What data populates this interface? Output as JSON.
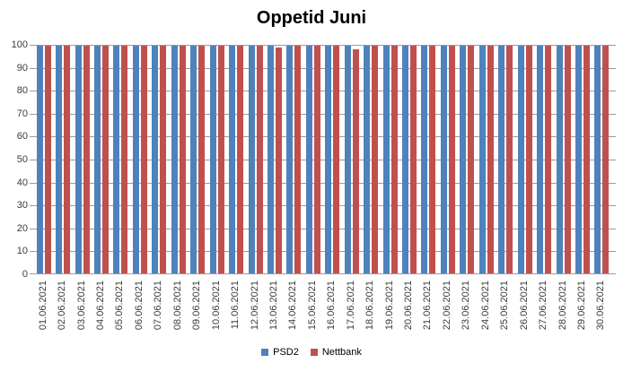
{
  "chart_data": {
    "type": "bar",
    "title": "Oppetid Juni",
    "categories": [
      "01.06.2021",
      "02.06.2021",
      "03.06.2021",
      "04.06.2021",
      "05.06.2021",
      "06.06.2021",
      "07.06.2021",
      "08.06.2021",
      "09.06.2021",
      "10.06.2021",
      "11.06.2021",
      "12.06.2021",
      "13.06.2021",
      "14.06.2021",
      "15.06.2021",
      "16.06.2021",
      "17.06.2021",
      "18.06.2021",
      "19.06.2021",
      "20.06.2021",
      "21.06.2021",
      "22.06.2021",
      "23.06.2021",
      "24.06.2021",
      "25.06.2021",
      "26.06.2021",
      "27.06.2021",
      "28.06.2021",
      "29.06.2021",
      "30.06.2021"
    ],
    "series": [
      {
        "name": "PSD2",
        "color": "#4F81BD",
        "values": [
          100,
          100,
          100,
          100,
          100,
          100,
          100,
          100,
          100,
          100,
          100,
          100,
          100,
          100,
          100,
          100,
          100,
          100,
          100,
          100,
          100,
          100,
          100,
          100,
          100,
          100,
          100,
          100,
          100,
          100
        ]
      },
      {
        "name": "Nettbank",
        "color": "#C0504D",
        "values": [
          100,
          100,
          100,
          100,
          100,
          100,
          100,
          100,
          100,
          100,
          100,
          100,
          99,
          100,
          100,
          100,
          98,
          100,
          100,
          100,
          100,
          100,
          100,
          100,
          100,
          100,
          100,
          100,
          100,
          100
        ]
      }
    ],
    "xlabel": "",
    "ylabel": "",
    "ylim": [
      0,
      100
    ],
    "ytick_step": 10,
    "grid": true,
    "legend_position": "bottom"
  },
  "colors": {
    "gridline": "#9B9B9B",
    "axis_text": "#3B3B3B",
    "title_text": "#000000",
    "background": "#FFFFFF"
  }
}
